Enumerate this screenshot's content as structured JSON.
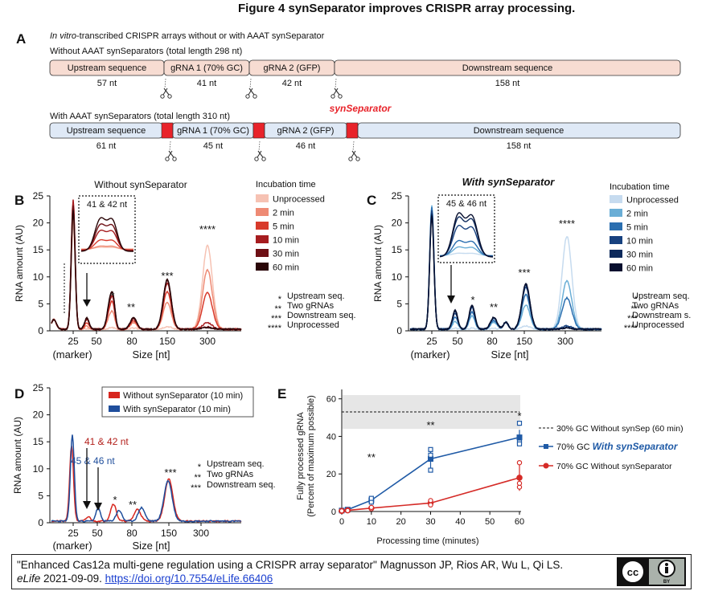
{
  "figure_title": "Figure 4  synSeparator improves CRISPR array processing.",
  "panelA": {
    "label": "A",
    "subtitle_italic": "In vitro",
    "subtitle_rest": "-transcribed CRISPR arrays without or with AAAT synSeparator",
    "without_label": "Without AAAT synSeparators (total length 298 nt)",
    "with_label": "With AAAT synSeparators (total length 310 nt)",
    "synseparator_label": "synSeparator",
    "without_segments": [
      {
        "name": "Upstream sequence",
        "len": "57 nt"
      },
      {
        "name": "gRNA 1 (70% GC)",
        "len": "41 nt"
      },
      {
        "name": "gRNA 2 (GFP)",
        "len": "42 nt"
      },
      {
        "name": "Downstream sequence",
        "len": "158 nt"
      }
    ],
    "with_segments": [
      {
        "name": "Upstream sequence",
        "len": "61 nt"
      },
      {
        "name": "gRNA 1 (70% GC)",
        "len": "45 nt"
      },
      {
        "name": "gRNA 2 (GFP)",
        "len": "46 nt"
      },
      {
        "name": "Downstream sequence",
        "len": "158 nt"
      }
    ],
    "colors": {
      "without_fill": "#f7dcd2",
      "with_fill": "#dfe9f6",
      "separator": "#e8232a"
    }
  },
  "panelB": {
    "label": "B",
    "title": "Without synSeparator",
    "ylabel": "RNA amount (AU)",
    "xlabel": "Size [nt]",
    "marker_label": "(marker)",
    "inset_label": "41 & 42 nt",
    "legend_title": "Incubation time",
    "legend": [
      "Unprocessed",
      "2 min",
      "5 min",
      "10 min",
      "30 min",
      "60 min"
    ],
    "colors": [
      "#f6c2b3",
      "#ee8a74",
      "#d83a2b",
      "#a61c1f",
      "#6e1015",
      "#2a0608"
    ],
    "stars": [
      "*",
      "**",
      "***",
      "****"
    ],
    "key": [
      {
        "star": "*",
        "text": "Upstream seq."
      },
      {
        "star": "**",
        "text": "Two gRNAs"
      },
      {
        "star": "***",
        "text": "Downstream seq."
      },
      {
        "star": "****",
        "text": "Unprocessed"
      }
    ],
    "x_ticks": [
      "25",
      "50",
      "80",
      "150",
      "300"
    ],
    "y_ticks": [
      "0",
      "5",
      "10",
      "15",
      "20",
      "25"
    ],
    "ylim": [
      0,
      25
    ]
  },
  "panelC": {
    "label": "C",
    "title": "With synSeparator",
    "ylabel": "RNA amount (AU)",
    "xlabel": "Size [nt]",
    "marker_label": "(marker)",
    "inset_label": "45 & 46 nt",
    "legend_title": "Incubation time",
    "legend": [
      "Unprocessed",
      "2 min",
      "5 min",
      "10 min",
      "30 min",
      "60 min"
    ],
    "colors": [
      "#c6dbef",
      "#6aaed6",
      "#2b6fb0",
      "#17417f",
      "#0d2a5c",
      "#070f2e"
    ],
    "stars": [
      "*",
      "**",
      "***",
      "****"
    ],
    "key": [
      {
        "star": "*",
        "text": "Upstream seq."
      },
      {
        "star": "**",
        "text": "Two gRNAs"
      },
      {
        "star": "***",
        "text": "Downstream s."
      },
      {
        "star": "****",
        "text": "Unprocessed"
      }
    ],
    "x_ticks": [
      "25",
      "50",
      "80",
      "150",
      "300"
    ],
    "y_ticks": [
      "0",
      "5",
      "10",
      "15",
      "20",
      "25"
    ],
    "ylim": [
      0,
      25
    ]
  },
  "panelD": {
    "label": "D",
    "ylabel": "RNA amount (AU)",
    "xlabel": "Size [nt]",
    "marker_label": "(marker)",
    "legend": [
      "Without synSeparator (10 min)",
      "With synSeparator (10 min)"
    ],
    "colors": [
      "#d7261e",
      "#1f4e9c"
    ],
    "arrow_labels": [
      "41 & 42 nt",
      "45 & 46 nt"
    ],
    "stars": [
      "*",
      "**",
      "***"
    ],
    "key": [
      {
        "star": "*",
        "text": "Upstream seq."
      },
      {
        "star": "**",
        "text": "Two gRNAs"
      },
      {
        "star": "***",
        "text": "Downstream seq."
      }
    ],
    "x_ticks": [
      "25",
      "50",
      "80",
      "150",
      "300"
    ],
    "y_ticks": [
      "0",
      "5",
      "10",
      "15",
      "20",
      "25"
    ],
    "ylim": [
      0,
      25
    ]
  },
  "panelE": {
    "label": "E",
    "ylabel_line1": "Fully processed gRNA",
    "ylabel_line2": "(Percent of maximum possible)",
    "xlabel": "Processing time (minutes)",
    "legend_dashed": "30% GC Without synSep (60 min)",
    "legend_blue_prefix": "70% GC ",
    "legend_blue_bold": "With synSeparator",
    "legend_red": "70% GC Without synSeparator",
    "stars": [
      {
        "x": 10,
        "text": "**"
      },
      {
        "x": 30,
        "text": "**"
      },
      {
        "x": 60,
        "text": "*"
      }
    ],
    "x_ticks": [
      "0",
      "10",
      "20",
      "30",
      "40",
      "50",
      "60"
    ],
    "y_ticks": [
      "0",
      "20",
      "40",
      "60"
    ],
    "colors": {
      "blue": "#1f5aa6",
      "red": "#d52b27",
      "band": "#e6e6e6"
    }
  },
  "chart_data": [
    {
      "type": "line",
      "title": "Without synSeparator",
      "xlabel": "Size [nt]",
      "ylabel": "RNA amount (AU)",
      "ylim": [
        0,
        25
      ],
      "x_tick_labels": [
        "25",
        "50",
        "80",
        "150",
        "300"
      ],
      "peaks": [
        {
          "label": "marker",
          "size_nt": 25,
          "values": {
            "Unprocessed": 20,
            "2 min": 21,
            "5 min": 23,
            "10 min": 24,
            "30 min": 23,
            "60 min": 22
          }
        },
        {
          "label": "41 & 42 nt",
          "size_nt": 41,
          "values": {
            "Unprocessed": 0.1,
            "2 min": 0.6,
            "5 min": 1.2,
            "10 min": 1.8,
            "30 min": 2.0,
            "60 min": 2.1
          }
        },
        {
          "label": "Upstream seq.",
          "size_nt": 60,
          "values": {
            "Unprocessed": 0.2,
            "2 min": 2.5,
            "5 min": 3.8,
            "10 min": 4.5,
            "30 min": 5.0,
            "60 min": 5.2
          }
        },
        {
          "label": "Two gRNAs",
          "size_nt": 85,
          "values": {
            "Unprocessed": 0.2,
            "2 min": 1.2,
            "5 min": 1.6,
            "10 min": 1.9,
            "30 min": 2.0,
            "60 min": 2.1
          }
        },
        {
          "label": "Downstream seq.",
          "size_nt": 150,
          "values": {
            "Unprocessed": 0.5,
            "2 min": 5.0,
            "5 min": 7.0,
            "10 min": 8.5,
            "30 min": 9.0,
            "60 min": 9.2
          }
        },
        {
          "label": "Unprocessed",
          "size_nt": 300,
          "values": {
            "Unprocessed": 15.5,
            "2 min": 11.0,
            "5 min": 6.8,
            "10 min": 1.2,
            "30 min": 0.4,
            "60 min": 0.3
          }
        }
      ],
      "series": [
        {
          "name": "Unprocessed"
        },
        {
          "name": "2 min"
        },
        {
          "name": "5 min"
        },
        {
          "name": "10 min"
        },
        {
          "name": "30 min"
        },
        {
          "name": "60 min"
        }
      ]
    },
    {
      "type": "line",
      "title": "With synSeparator",
      "xlabel": "Size [nt]",
      "ylabel": "RNA amount (AU)",
      "ylim": [
        0,
        25
      ],
      "x_tick_labels": [
        "25",
        "50",
        "80",
        "150",
        "300"
      ],
      "peaks": [
        {
          "label": "marker",
          "size_nt": 25,
          "values": {
            "Unprocessed": 22,
            "2 min": 23,
            "5 min": 22.5,
            "10 min": 22,
            "30 min": 21.5,
            "60 min": 21
          }
        },
        {
          "label": "45 & 46 nt",
          "size_nt": 45,
          "values": {
            "Unprocessed": 0.2,
            "2 min": 1.5,
            "5 min": 2.3,
            "10 min": 3.0,
            "30 min": 3.3,
            "60 min": 3.5
          }
        },
        {
          "label": "Upstream seq.",
          "size_nt": 62,
          "values": {
            "Unprocessed": 0.2,
            "2 min": 2.5,
            "5 min": 3.2,
            "10 min": 4.0,
            "30 min": 4.3,
            "60 min": 4.5
          }
        },
        {
          "label": "Two gRNAs",
          "size_nt": 90,
          "values": {
            "Unprocessed": 0.2,
            "2 min": 1.3,
            "5 min": 1.6,
            "10 min": 2.0,
            "30 min": 2.1,
            "60 min": 2.2
          }
        },
        {
          "label": "Downstream seq.",
          "size_nt": 150,
          "values": {
            "Unprocessed": 0.6,
            "2 min": 4.5,
            "5 min": 6.5,
            "10 min": 7.8,
            "30 min": 8.2,
            "60 min": 8.4
          }
        },
        {
          "label": "Unprocessed",
          "size_nt": 300,
          "values": {
            "Unprocessed": 17.2,
            "2 min": 9.0,
            "5 min": 5.8,
            "10 min": 0.6,
            "30 min": 0.3,
            "60 min": 0.2
          }
        }
      ],
      "series": [
        {
          "name": "Unprocessed"
        },
        {
          "name": "2 min"
        },
        {
          "name": "5 min"
        },
        {
          "name": "10 min"
        },
        {
          "name": "30 min"
        },
        {
          "name": "60 min"
        }
      ]
    },
    {
      "type": "line",
      "xlabel": "Size [nt]",
      "ylabel": "RNA amount (AU)",
      "ylim": [
        0,
        25
      ],
      "x_tick_labels": [
        "25",
        "50",
        "80",
        "150",
        "300"
      ],
      "series": [
        {
          "name": "Without synSeparator (10 min)",
          "peaks": [
            {
              "size_nt": 25,
              "value": 14.0
            },
            {
              "size_nt": 41,
              "value": 0.8
            },
            {
              "size_nt": 60,
              "value": 3.2
            },
            {
              "size_nt": 85,
              "value": 2.2
            },
            {
              "size_nt": 150,
              "value": 7.8
            }
          ]
        },
        {
          "name": "With synSeparator (10 min)",
          "peaks": [
            {
              "size_nt": 25,
              "value": 16.0
            },
            {
              "size_nt": 45,
              "value": 2.4
            },
            {
              "size_nt": 62,
              "value": 2.0
            },
            {
              "size_nt": 90,
              "value": 2.5
            },
            {
              "size_nt": 150,
              "value": 7.5
            }
          ]
        }
      ]
    },
    {
      "type": "line",
      "xlabel": "Processing time (minutes)",
      "ylabel": "Fully processed gRNA (Percent of maximum possible)",
      "ylim": [
        0,
        65
      ],
      "xlim": [
        0,
        60
      ],
      "reference_band": {
        "name": "30% GC Without synSep (60 min)",
        "mean": 53,
        "low": 44,
        "high": 62
      },
      "series": [
        {
          "name": "70% GC With synSeparator",
          "x": [
            0,
            2,
            10,
            30,
            60
          ],
          "y": [
            0.5,
            1,
            6,
            28,
            39.5
          ],
          "err": [
            0.3,
            0.3,
            1.2,
            5,
            4
          ],
          "points": [
            [
              0,
              0.5
            ],
            [
              2,
              1
            ],
            [
              10,
              5
            ],
            [
              10,
              7
            ],
            [
              30,
              22
            ],
            [
              30,
              30
            ],
            [
              30,
              33
            ],
            [
              60,
              37
            ],
            [
              60,
              36
            ],
            [
              60,
              47
            ]
          ]
        },
        {
          "name": "70% GC Without synSeparator",
          "x": [
            0,
            2,
            10,
            30,
            60
          ],
          "y": [
            0.3,
            0.6,
            1.8,
            4.5,
            18
          ],
          "err": [
            0.2,
            0.2,
            0.7,
            1.5,
            7
          ],
          "points": [
            [
              0,
              0.3
            ],
            [
              2,
              0.5
            ],
            [
              10,
              1.5
            ],
            [
              10,
              2.2
            ],
            [
              30,
              3.5
            ],
            [
              30,
              5.8
            ],
            [
              60,
              13
            ],
            [
              60,
              15
            ],
            [
              60,
              26
            ]
          ]
        }
      ]
    }
  ],
  "citation": {
    "text_a": "\"Enhanced Cas12a multi-gene regulation using a CRISPR array separator\" Magnusson JP, Rios AR, Wu L, Qi LS. ",
    "journal": "eLife",
    "text_b": " 2021-09-09. ",
    "link": "https://doi.org/10.7554/eLife.66406",
    "license_badge": "BY"
  }
}
